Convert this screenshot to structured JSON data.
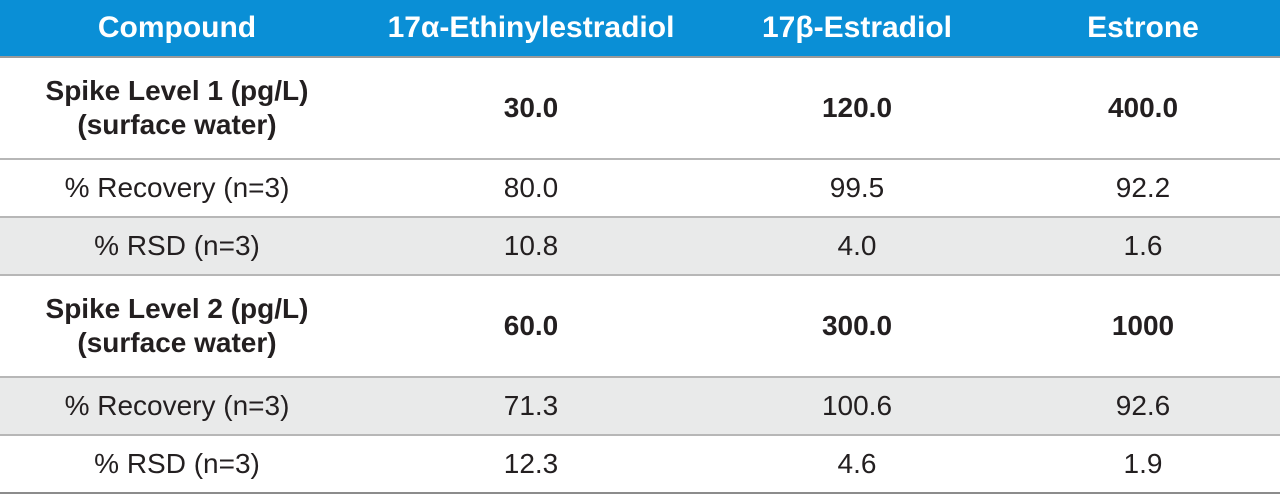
{
  "table": {
    "header": [
      "Compound",
      "17α-Ethinylestradiol",
      "17β-Estradiol",
      "Estrone"
    ],
    "rows": [
      {
        "label_line1": "Spike Level 1 (pg/L)",
        "label_line2": "(surface water)",
        "values": [
          "30.0",
          "120.0",
          "400.0"
        ]
      },
      {
        "label": "% Recovery (n=3)",
        "values": [
          "80.0",
          "99.5",
          "92.2"
        ]
      },
      {
        "label": "% RSD (n=3)",
        "values": [
          "10.8",
          "4.0",
          "1.6"
        ]
      },
      {
        "label_line1": "Spike Level 2 (pg/L)",
        "label_line2": "(surface water)",
        "values": [
          "60.0",
          "300.0",
          "1000"
        ]
      },
      {
        "label": "% Recovery (n=3)",
        "values": [
          "71.3",
          "100.6",
          "92.6"
        ]
      },
      {
        "label": "% RSD (n=3)",
        "values": [
          "12.3",
          "4.6",
          "1.9"
        ]
      }
    ]
  },
  "colors": {
    "header_bg": "#0a8fd6",
    "header_text": "#ffffff",
    "stripe": "#e9eaea"
  }
}
